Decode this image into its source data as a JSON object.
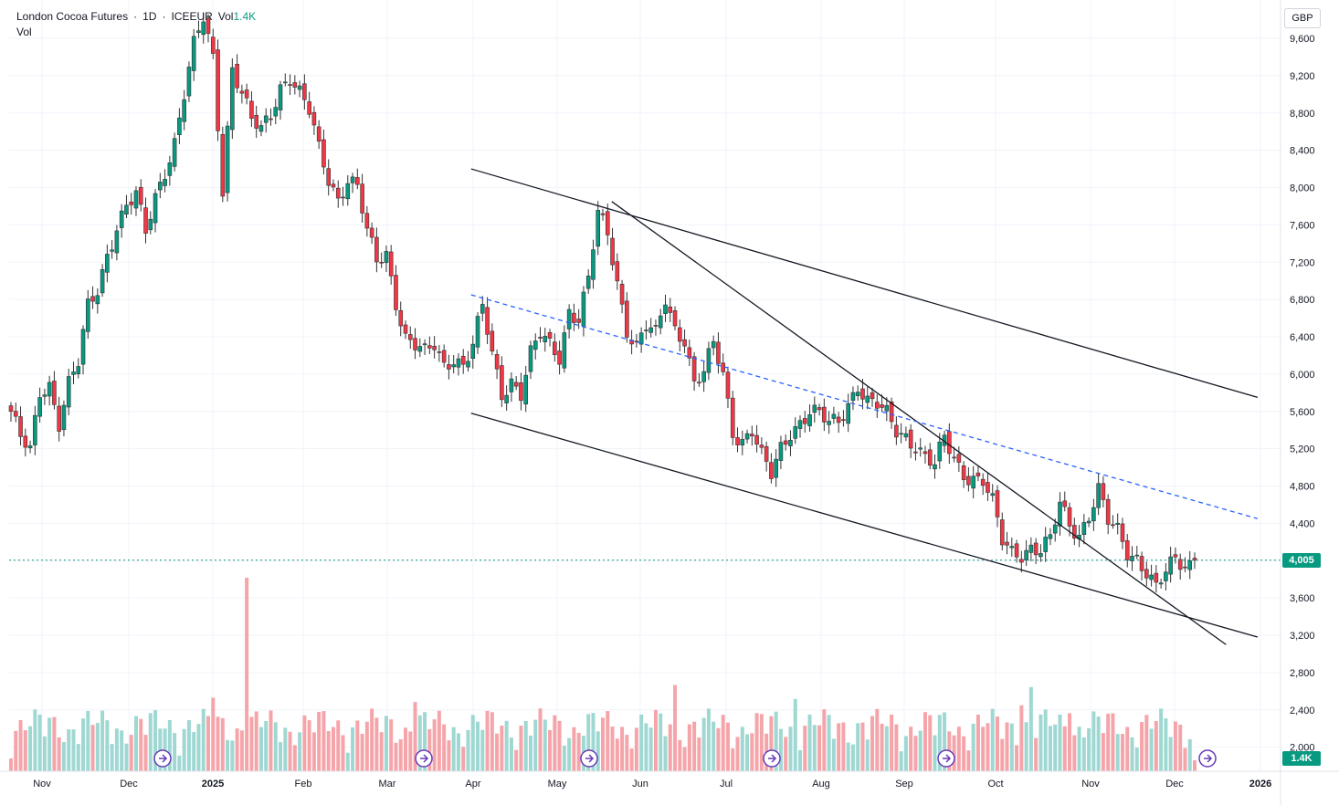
{
  "legend": {
    "symbol": "London Cocoa Futures",
    "interval": "1D",
    "exchange": "ICEEUR",
    "vol_label": "Vol",
    "vol_value": "1.4K",
    "pane_label": "Vol"
  },
  "currency": "GBP",
  "last_price_label": "4,005",
  "last_volume_label": "1.4K",
  "colors": {
    "up": "#089981",
    "down": "#f23645",
    "vol_up": "#9fd8d2",
    "vol_down": "#f5a5aa",
    "grid": "#f0f3fa",
    "trendline": "#131722",
    "dashed_line": "#2962ff",
    "event_marker": "#673ab7"
  },
  "chart_data": {
    "type": "candlestick",
    "y_axis_ticks": [
      "9,600",
      "9,200",
      "8,800",
      "8,400",
      "8,000",
      "7,600",
      "7,200",
      "6,800",
      "6,400",
      "6,000",
      "5,600",
      "5,200",
      "4,800",
      "4,400",
      "4,000",
      "3,600",
      "3,200",
      "2,800",
      "2,400",
      "2,000"
    ],
    "x_axis_labels": [
      "Nov",
      "Dec",
      "2025",
      "Feb",
      "Mar",
      "Apr",
      "May",
      "Jun",
      "Jul",
      "Aug",
      "Sep",
      "Oct",
      "Nov",
      "Dec",
      "2026"
    ],
    "last_price": 4005,
    "last_volume": "1.4K",
    "price_path": [
      [
        0,
        5600
      ],
      [
        2,
        5300
      ],
      [
        4,
        5150
      ],
      [
        6,
        5800
      ],
      [
        8,
        5900
      ],
      [
        10,
        5500
      ],
      [
        12,
        5900
      ],
      [
        14,
        6100
      ],
      [
        16,
        6700
      ],
      [
        18,
        6900
      ],
      [
        20,
        7300
      ],
      [
        22,
        7600
      ],
      [
        24,
        7800
      ],
      [
        26,
        7900
      ],
      [
        28,
        7500
      ],
      [
        30,
        7900
      ],
      [
        32,
        8200
      ],
      [
        34,
        8500
      ],
      [
        36,
        9000
      ],
      [
        38,
        9500
      ],
      [
        40,
        9800
      ],
      [
        42,
        9400
      ],
      [
        44,
        8000
      ],
      [
        46,
        9300
      ],
      [
        48,
        9000
      ],
      [
        50,
        8700
      ],
      [
        52,
        8600
      ],
      [
        54,
        8800
      ],
      [
        56,
        9100
      ],
      [
        58,
        9200
      ],
      [
        60,
        9000
      ],
      [
        62,
        8800
      ],
      [
        64,
        8400
      ],
      [
        66,
        8100
      ],
      [
        68,
        7900
      ],
      [
        70,
        8100
      ],
      [
        72,
        8000
      ],
      [
        74,
        7500
      ],
      [
        76,
        7200
      ],
      [
        78,
        7300
      ],
      [
        80,
        6800
      ],
      [
        82,
        6400
      ],
      [
        84,
        6300
      ],
      [
        86,
        6200
      ],
      [
        88,
        6300
      ],
      [
        90,
        6100
      ],
      [
        92,
        6200
      ],
      [
        94,
        6100
      ],
      [
        96,
        6300
      ],
      [
        98,
        6700
      ],
      [
        100,
        6200
      ],
      [
        102,
        5800
      ],
      [
        104,
        5950
      ],
      [
        106,
        5800
      ],
      [
        108,
        6200
      ],
      [
        110,
        6400
      ],
      [
        112,
        6300
      ],
      [
        114,
        6200
      ],
      [
        116,
        6700
      ],
      [
        118,
        6600
      ],
      [
        120,
        7000
      ],
      [
        122,
        7700
      ],
      [
        124,
        7500
      ],
      [
        126,
        7000
      ],
      [
        128,
        6500
      ],
      [
        130,
        6300
      ],
      [
        132,
        6500
      ],
      [
        134,
        6400
      ],
      [
        136,
        6800
      ],
      [
        138,
        6500
      ],
      [
        140,
        6400
      ],
      [
        142,
        5900
      ],
      [
        144,
        6000
      ],
      [
        146,
        6300
      ],
      [
        148,
        6000
      ],
      [
        150,
        5400
      ],
      [
        152,
        5300
      ],
      [
        154,
        5400
      ],
      [
        156,
        5100
      ],
      [
        158,
        4900
      ],
      [
        160,
        5200
      ],
      [
        162,
        5400
      ],
      [
        164,
        5500
      ],
      [
        166,
        5600
      ],
      [
        168,
        5550
      ],
      [
        170,
        5450
      ],
      [
        172,
        5500
      ],
      [
        174,
        5700
      ],
      [
        176,
        5900
      ],
      [
        178,
        5700
      ],
      [
        180,
        5650
      ],
      [
        182,
        5550
      ],
      [
        184,
        5400
      ],
      [
        186,
        5350
      ],
      [
        188,
        5250
      ],
      [
        190,
        5100
      ],
      [
        192,
        5000
      ],
      [
        194,
        5300
      ],
      [
        196,
        5100
      ],
      [
        198,
        4950
      ],
      [
        200,
        4900
      ],
      [
        202,
        4850
      ],
      [
        204,
        4600
      ],
      [
        206,
        4200
      ],
      [
        208,
        4100
      ],
      [
        210,
        4100
      ],
      [
        212,
        4150
      ],
      [
        214,
        4100
      ],
      [
        216,
        4200
      ],
      [
        218,
        4600
      ],
      [
        220,
        4400
      ],
      [
        222,
        4300
      ],
      [
        224,
        4500
      ],
      [
        226,
        4750
      ],
      [
        228,
        4400
      ],
      [
        230,
        4300
      ],
      [
        232,
        4100
      ],
      [
        234,
        4050
      ],
      [
        236,
        3900
      ],
      [
        238,
        3700
      ],
      [
        240,
        3850
      ],
      [
        242,
        4000
      ],
      [
        244,
        3950
      ],
      [
        246,
        4005
      ]
    ],
    "trendlines": [
      {
        "kind": "channel-upper",
        "from": [
          "2025-04-01",
          8200
        ],
        "to": [
          "2025-12-31",
          5750
        ]
      },
      {
        "kind": "channel-lower",
        "from": [
          "2025-04-01",
          5580
        ],
        "to": [
          "2025-12-31",
          3180
        ]
      },
      {
        "kind": "steep-resistance",
        "from": [
          "2025-05-20",
          7850
        ],
        "to": [
          "2025-12-20",
          3100
        ]
      },
      {
        "kind": "dashed",
        "from": [
          "2025-04-01",
          6850
        ],
        "to": [
          "2025-12-31",
          4450
        ]
      }
    ]
  }
}
